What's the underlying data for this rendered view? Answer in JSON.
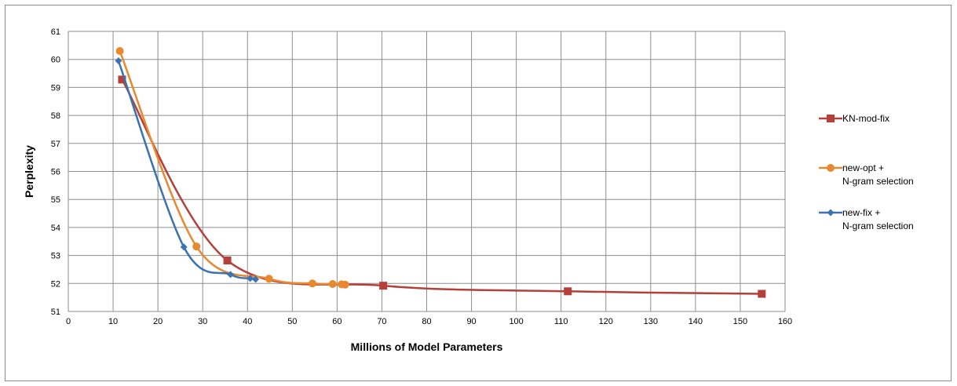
{
  "chart_data": {
    "type": "line",
    "title": "",
    "xlabel": "Millions of Model Parameters",
    "ylabel": "Perplexity",
    "xlim": [
      0,
      160
    ],
    "ylim": [
      51,
      61
    ],
    "xticks": [
      0,
      10,
      20,
      30,
      40,
      50,
      60,
      70,
      80,
      90,
      100,
      110,
      120,
      130,
      140,
      150,
      160
    ],
    "yticks": [
      51,
      52,
      53,
      54,
      55,
      56,
      57,
      58,
      59,
      60,
      61
    ],
    "grid": true,
    "legend_position": "right",
    "series": [
      {
        "name": "KN-mod-fix",
        "legend_lines": [
          "KN-mod-fix"
        ],
        "color": "#b5403a",
        "marker": "square",
        "x": [
          12.0,
          35.5,
          70.3,
          111.5,
          154.8
        ],
        "y": [
          59.28,
          52.82,
          51.92,
          51.72,
          51.63
        ]
      },
      {
        "name": "new-opt + N-gram selection",
        "legend_lines": [
          "new-opt +",
          "N-gram selection"
        ],
        "color": "#e8882f",
        "marker": "circle",
        "x": [
          11.5,
          28.6,
          44.8,
          54.5,
          59.0,
          61.0,
          61.8
        ],
        "y": [
          60.3,
          53.32,
          52.17,
          52.0,
          51.98,
          51.97,
          51.96
        ]
      },
      {
        "name": "new-fix + N-gram selection",
        "legend_lines": [
          "new-fix +",
          "N-gram selection"
        ],
        "color": "#3b72b0",
        "marker": "diamond",
        "x": [
          11.2,
          25.8,
          36.2,
          40.6,
          41.8
        ],
        "y": [
          59.95,
          53.3,
          52.32,
          52.18,
          52.15
        ]
      }
    ]
  }
}
